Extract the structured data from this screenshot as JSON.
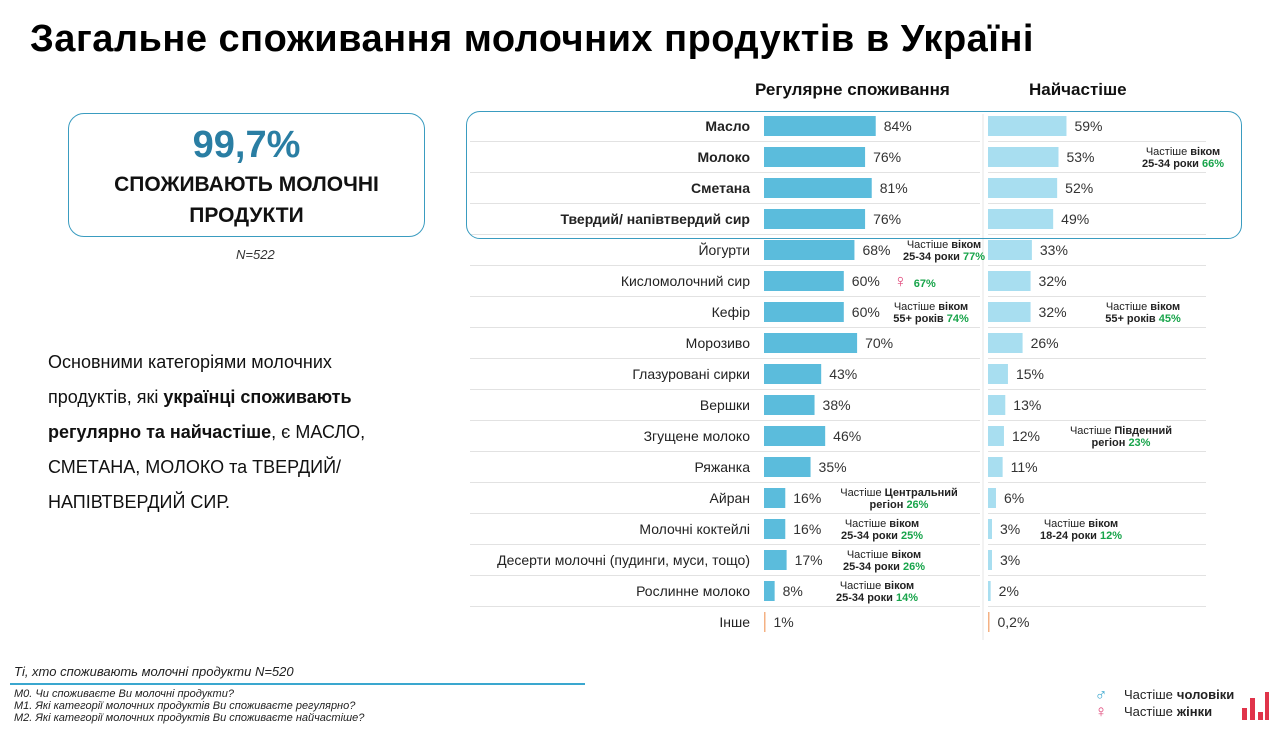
{
  "title": "Загальне споживання молочних продуктів в Україні",
  "stat": {
    "value": "99,7%",
    "label": "СПОЖИВАЮТЬ МОЛОЧНІ ПРОДУКТИ",
    "n": "N=522"
  },
  "summary": {
    "part1": "Основними категоріями молочних продуктів, які ",
    "bold": "українці споживають регулярно та найчастіше",
    "part2": ", є МАСЛО, СМЕТАНА, МОЛОКО та ТВЕРДИЙ/НАПІВТВЕРДИЙ СИР."
  },
  "columns": {
    "regular": "Регулярне споживання",
    "frequent": "Найчастіше"
  },
  "colors": {
    "regular": "#5bbcdc",
    "frequent": "#a8def0",
    "accent": "#17a44a",
    "female": "#e0477a",
    "frame": "#3a9cc0",
    "other_bar": "#f4b183"
  },
  "chart_data": {
    "type": "bar",
    "orientation": "horizontal",
    "series": [
      {
        "name": "Регулярне споживання",
        "values": [
          84,
          76,
          81,
          76,
          68,
          60,
          60,
          70,
          43,
          38,
          46,
          35,
          16,
          16,
          17,
          8,
          1
        ]
      },
      {
        "name": "Найчастіше",
        "values": [
          59,
          53,
          52,
          49,
          33,
          32,
          32,
          26,
          15,
          13,
          12,
          11,
          6,
          3,
          3,
          2,
          0.2
        ]
      }
    ],
    "categories": [
      "Масло",
      "Молоко",
      "Сметана",
      "Твердий/ напівтвердий сир",
      "Йогурти",
      "Кисломолочний сир",
      "Кефір",
      "Морозиво",
      "Глазуровані сирки",
      "Вершки",
      "Згущене молоко",
      "Ряжанка",
      "Айран",
      "Молочні коктейлі",
      "Десерти молочні (пудинги, муси, тощо)",
      "Рослинне молоко",
      "Інше"
    ],
    "bold_categories": 4,
    "value_labels": {
      "regular": [
        "84%",
        "76%",
        "81%",
        "76%",
        "68%",
        "60%",
        "60%",
        "70%",
        "43%",
        "38%",
        "46%",
        "35%",
        "16%",
        "16%",
        "17%",
        "8%",
        "1%"
      ],
      "frequent": [
        "59%",
        "53%",
        "52%",
        "49%",
        "33%",
        "32%",
        "32%",
        "26%",
        "15%",
        "13%",
        "12%",
        "11%",
        "6%",
        "3%",
        "3%",
        "2%",
        "0,2%"
      ]
    },
    "annotations": [
      {
        "col": "frequent",
        "row": 1,
        "line1_prefix": "Частіше ",
        "line1_bold": "віком",
        "line2_text": "25-34 роки",
        "line2_value": "66%"
      },
      {
        "col": "regular",
        "row": 4,
        "line1_prefix": "Частіше ",
        "line1_bold": "віком",
        "line2_text": "25-34 роки",
        "line2_value": "77%"
      },
      {
        "col": "regular",
        "row": 5,
        "female": true,
        "value": "67%"
      },
      {
        "col": "regular",
        "row": 6,
        "line1_prefix": "Частіше ",
        "line1_bold": "віком",
        "line2_text": "55+ років",
        "line2_value": "74%"
      },
      {
        "col": "frequent",
        "row": 6,
        "line1_prefix": "Частіше ",
        "line1_bold": "віком",
        "line2_text": "55+ років",
        "line2_value": "45%"
      },
      {
        "col": "frequent",
        "row": 10,
        "line1_prefix": "Частіше ",
        "line1_bold": "Південний",
        "line2_text": "регіон",
        "line2_value": "23%"
      },
      {
        "col": "regular",
        "row": 12,
        "line1_prefix": "Частіше ",
        "line1_bold": "Центральний",
        "line2_text": "регіон",
        "line2_value": "26%"
      },
      {
        "col": "regular",
        "row": 13,
        "line1_prefix": "Частіше ",
        "line1_bold": "віком",
        "line2_text": "25-34 роки",
        "line2_value": "25%"
      },
      {
        "col": "frequent",
        "row": 13,
        "line1_prefix": "Частіше ",
        "line1_bold": "віком",
        "line2_text": "18-24 роки",
        "line2_value": "12%"
      },
      {
        "col": "regular",
        "row": 14,
        "line1_prefix": "Частіше ",
        "line1_bold": "віком",
        "line2_text": "25-34 роки",
        "line2_value": "26%"
      },
      {
        "col": "regular",
        "row": 15,
        "line1_prefix": "Частіше ",
        "line1_bold": "віком",
        "line2_text": "25-34 роки",
        "line2_value": "14%"
      }
    ]
  },
  "footer": {
    "n_note": "Ті, хто споживають молочні продукти N=520",
    "q0": "М0. Чи споживаєте Ви молочні продукти?",
    "q1": "М1. Які категорії молочних продуктів Ви споживаєте регулярно?",
    "q2": "М2. Які категорії молочних продуктів Ви споживаєте найчастіше?"
  },
  "legend": {
    "male_prefix": "Частіше",
    "male_bold": "чоловіки",
    "female_prefix": "Частіше",
    "female_bold": "жінки"
  }
}
